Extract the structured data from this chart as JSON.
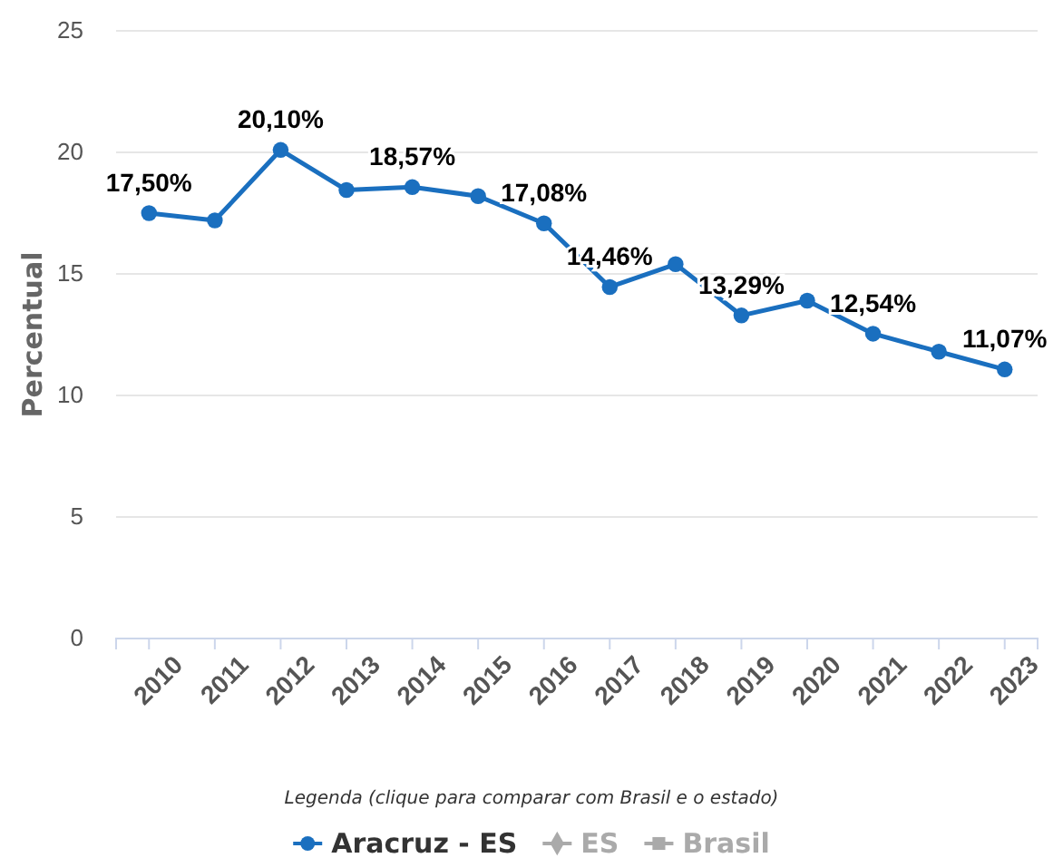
{
  "chart_data": {
    "type": "line",
    "ylabel": "Percentual",
    "legend_title": "Legenda (clique para comparar com Brasil e o estado)",
    "legend": "bottom",
    "grid": "y",
    "categories": [
      "2010",
      "2011",
      "2012",
      "2013",
      "2014",
      "2015",
      "2016",
      "2017",
      "2018",
      "2019",
      "2020",
      "2021",
      "2022",
      "2023"
    ],
    "ylim": [
      0,
      25
    ],
    "yticks": [
      0,
      5,
      10,
      15,
      20,
      25
    ],
    "series": [
      {
        "name": "Aracruz - ES",
        "color": "#1a6fbf",
        "marker": "circle",
        "values": [
          17.5,
          17.2,
          20.1,
          18.45,
          18.57,
          18.2,
          17.08,
          14.46,
          15.4,
          13.29,
          13.9,
          12.54,
          11.8,
          11.07
        ],
        "value_labels": [
          "17,50%",
          null,
          "20,10%",
          null,
          "18,57%",
          null,
          "17,08%",
          "14,46%",
          null,
          "13,29%",
          null,
          "12,54%",
          null,
          "11,07%"
        ]
      },
      {
        "name": "ES",
        "color": "#aaaaaa",
        "marker": "diamond",
        "values": [
          null,
          null,
          null,
          null,
          null,
          null,
          null,
          null,
          null,
          null,
          null,
          null,
          null,
          null
        ]
      },
      {
        "name": "Brasil",
        "color": "#aaaaaa",
        "marker": "square",
        "values": [
          null,
          null,
          null,
          null,
          null,
          null,
          null,
          null,
          null,
          null,
          null,
          null,
          null,
          null
        ]
      }
    ]
  }
}
